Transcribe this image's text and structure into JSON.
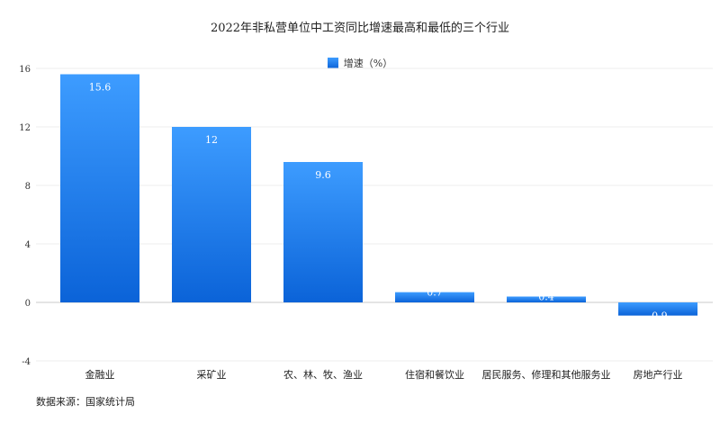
{
  "chart_data": {
    "type": "bar",
    "title": "2022年非私营单位中工资同比增速最高和最低的三个行业",
    "categories": [
      "金融业",
      "采矿业",
      "农、林、牧、渔业",
      "住宿和餐饮业",
      "居民服务、修理和其他服务业",
      "房地产行业"
    ],
    "series": [
      {
        "name": "增速（%）",
        "values": [
          15.6,
          12,
          9.6,
          0.7,
          0.4,
          -0.9
        ]
      }
    ],
    "data_labels": [
      "15.6",
      "12",
      "9.6",
      "0.7",
      "0.4",
      "-0.9"
    ],
    "y_ticks": [
      16,
      12,
      8,
      4,
      0,
      -4
    ],
    "ylim": [
      -4,
      16
    ],
    "xlabel": "",
    "ylabel": "",
    "legend_position": "top-center",
    "bar_color_top": "#3d9cff",
    "bar_color_bottom": "#0b63d8",
    "grid": true
  },
  "source_text": "数据来源：国家统计局"
}
